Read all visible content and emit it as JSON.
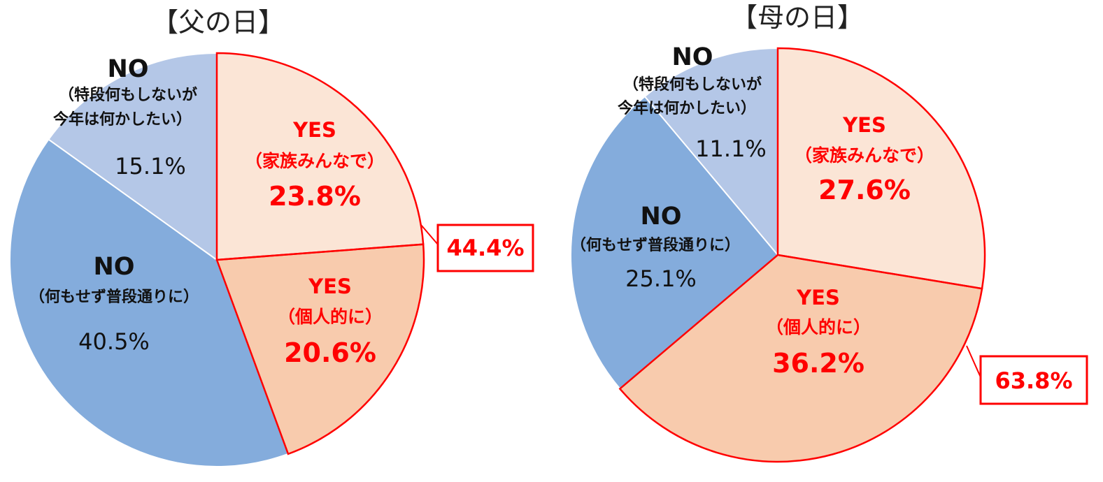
{
  "chart_data": [
    {
      "type": "pie",
      "title": "【父の日】",
      "slices": [
        {
          "key": "yes_family",
          "label": "YES",
          "sublabel": "（家族みんなで）",
          "value": 23.8,
          "value_label": "23.8%",
          "color": "#fbe5d6",
          "edge": "#ff0000"
        },
        {
          "key": "yes_personal",
          "label": "YES",
          "sublabel": "（個人的に）",
          "value": 20.6,
          "value_label": "20.6%",
          "color": "#f8cbad",
          "edge": "#ff0000"
        },
        {
          "key": "no_usual",
          "label": "NO",
          "sublabel": "（何もせず普段通りに）",
          "value": 40.5,
          "value_label": "40.5%",
          "color": "#84acdc",
          "edge": "#ffffff"
        },
        {
          "key": "no_want",
          "label": "NO",
          "sublabel_lines": [
            "（特段何もしないが",
            "今年は何かしたい）"
          ],
          "value": 15.1,
          "value_label": "15.1%",
          "color": "#b4c7e7",
          "edge": "#ffffff"
        }
      ],
      "yes_total": "44.4%"
    },
    {
      "type": "pie",
      "title": "【母の日】",
      "slices": [
        {
          "key": "yes_family",
          "label": "YES",
          "sublabel": "（家族みんなで）",
          "value": 27.6,
          "value_label": "27.6%",
          "color": "#fbe5d6",
          "edge": "#ff0000"
        },
        {
          "key": "yes_personal",
          "label": "YES",
          "sublabel": "（個人的に）",
          "value": 36.2,
          "value_label": "36.2%",
          "color": "#f8cbad",
          "edge": "#ff0000"
        },
        {
          "key": "no_usual",
          "label": "NO",
          "sublabel": "（何もせず普段通りに）",
          "value": 25.1,
          "value_label": "25.1%",
          "color": "#84acdc",
          "edge": "#ffffff"
        },
        {
          "key": "no_want",
          "label": "NO",
          "sublabel_lines": [
            "（特段何もしないが",
            "今年は何かしたい）"
          ],
          "value": 11.1,
          "value_label": "11.1%",
          "color": "#b4c7e7",
          "edge": "#ffffff"
        }
      ],
      "yes_total": "63.8%"
    }
  ]
}
